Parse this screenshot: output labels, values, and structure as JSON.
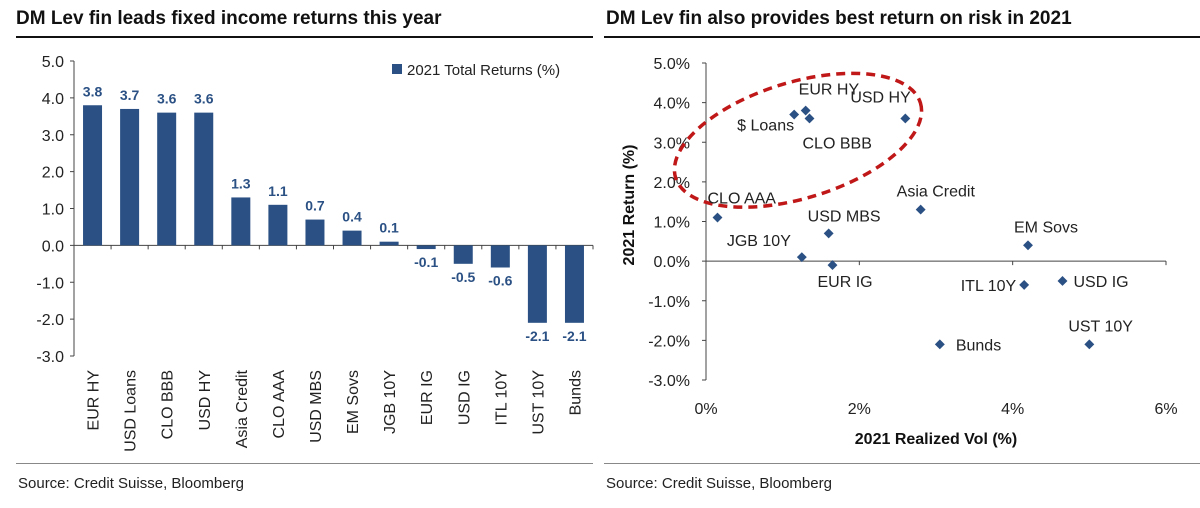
{
  "left": {
    "title": "DM Lev fin leads fixed income returns this year",
    "source": "Source: Credit Suisse, Bloomberg"
  },
  "right": {
    "title": "DM Lev fin also provides best return on risk in 2021",
    "source": "Source: Credit Suisse, Bloomberg"
  },
  "chart_data": [
    {
      "type": "bar",
      "title": "DM Lev fin leads fixed income returns this year",
      "categories": [
        "EUR HY",
        "USD Loans",
        "CLO BBB",
        "USD HY",
        "Asia Credit",
        "CLO AAA",
        "USD MBS",
        "EM Sovs",
        "JGB 10Y",
        "EUR IG",
        "USD IG",
        "ITL 10Y",
        "UST 10Y",
        "Bunds"
      ],
      "values": [
        3.8,
        3.7,
        3.6,
        3.6,
        1.3,
        1.1,
        0.7,
        0.4,
        0.1,
        -0.1,
        -0.5,
        -0.6,
        -2.1,
        -2.1
      ],
      "data_labels": [
        "3.8",
        "3.7",
        "3.6",
        "3.6",
        "1.3",
        "1.1",
        "0.7",
        "0.4",
        "0.1",
        "-0.1",
        "-0.5",
        "-0.6",
        "-2.1",
        "-2.1"
      ],
      "legend": "2021 Total Returns (%)",
      "legend_position": "top-right",
      "ylim": [
        -3.0,
        5.0
      ],
      "yticks": [
        "5.0",
        "4.0",
        "3.0",
        "2.0",
        "1.0",
        "0.0",
        "-1.0",
        "-2.0",
        "-3.0"
      ],
      "xlabel": "",
      "ylabel": "",
      "color": "#2b5184",
      "label_color": "#2b5184"
    },
    {
      "type": "scatter",
      "title": "DM Lev fin also provides best return on risk in 2021",
      "xlabel": "2021 Realized Vol (%)",
      "ylabel": "2021 Return (%)",
      "xlim": [
        0,
        6
      ],
      "ylim": [
        -3.0,
        5.0
      ],
      "xticks": [
        "0%",
        "2%",
        "4%",
        "6%"
      ],
      "yticks": [
        "5.0%",
        "4.0%",
        "3.0%",
        "2.0%",
        "1.0%",
        "0.0%",
        "-1.0%",
        "-2.0%",
        "-3.0%"
      ],
      "points": [
        {
          "name": "EUR HY",
          "x": 1.3,
          "y": 3.8
        },
        {
          "name": "$ Loans",
          "x": 1.15,
          "y": 3.7
        },
        {
          "name": "CLO BBB",
          "x": 1.35,
          "y": 3.6
        },
        {
          "name": "USD HY",
          "x": 2.6,
          "y": 3.6
        },
        {
          "name": "Asia Credit",
          "x": 2.8,
          "y": 1.3
        },
        {
          "name": "CLO AAA",
          "x": 0.15,
          "y": 1.1
        },
        {
          "name": "USD MBS",
          "x": 1.6,
          "y": 0.7
        },
        {
          "name": "EM Sovs",
          "x": 4.2,
          "y": 0.4
        },
        {
          "name": "JGB 10Y",
          "x": 1.25,
          "y": 0.1
        },
        {
          "name": "EUR IG",
          "x": 1.65,
          "y": -0.1
        },
        {
          "name": "USD IG",
          "x": 4.65,
          "y": -0.5
        },
        {
          "name": "ITL 10Y",
          "x": 4.15,
          "y": -0.6
        },
        {
          "name": "UST 10Y",
          "x": 5.0,
          "y": -2.1
        },
        {
          "name": "Bunds",
          "x": 3.05,
          "y": -2.1
        }
      ],
      "marker_color": "#2b5184",
      "highlight": {
        "shape": "ellipse",
        "style": "dashed",
        "color": "#c01818"
      }
    }
  ]
}
